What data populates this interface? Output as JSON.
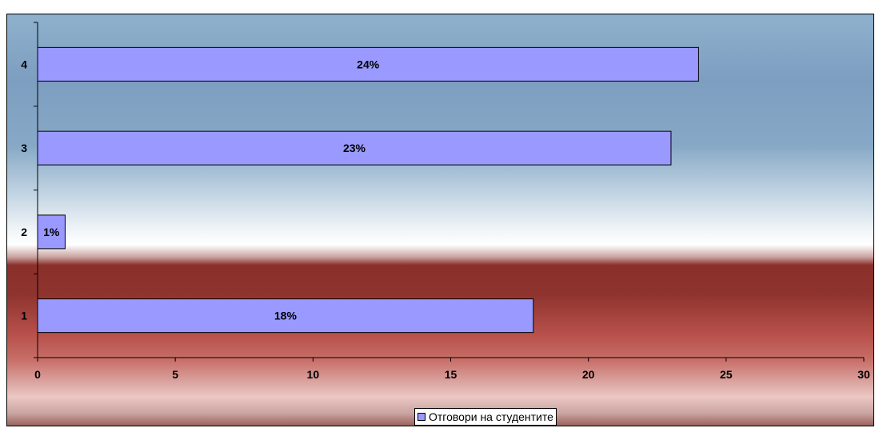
{
  "chart_data": {
    "type": "bar",
    "orientation": "horizontal",
    "title": "",
    "categories": [
      "1",
      "2",
      "3",
      "4"
    ],
    "series": [
      {
        "name": "Отговори на студентите",
        "values": [
          18,
          1,
          23,
          24
        ],
        "data_labels": [
          "18%",
          "1%",
          "23%",
          "24%"
        ],
        "color": "#9999ff"
      }
    ],
    "xlabel": "",
    "ylabel": "",
    "xlim": [
      0,
      30
    ],
    "x_ticks": [
      0,
      5,
      10,
      15,
      20,
      25,
      30
    ],
    "grid": false,
    "legend_position": "bottom"
  }
}
